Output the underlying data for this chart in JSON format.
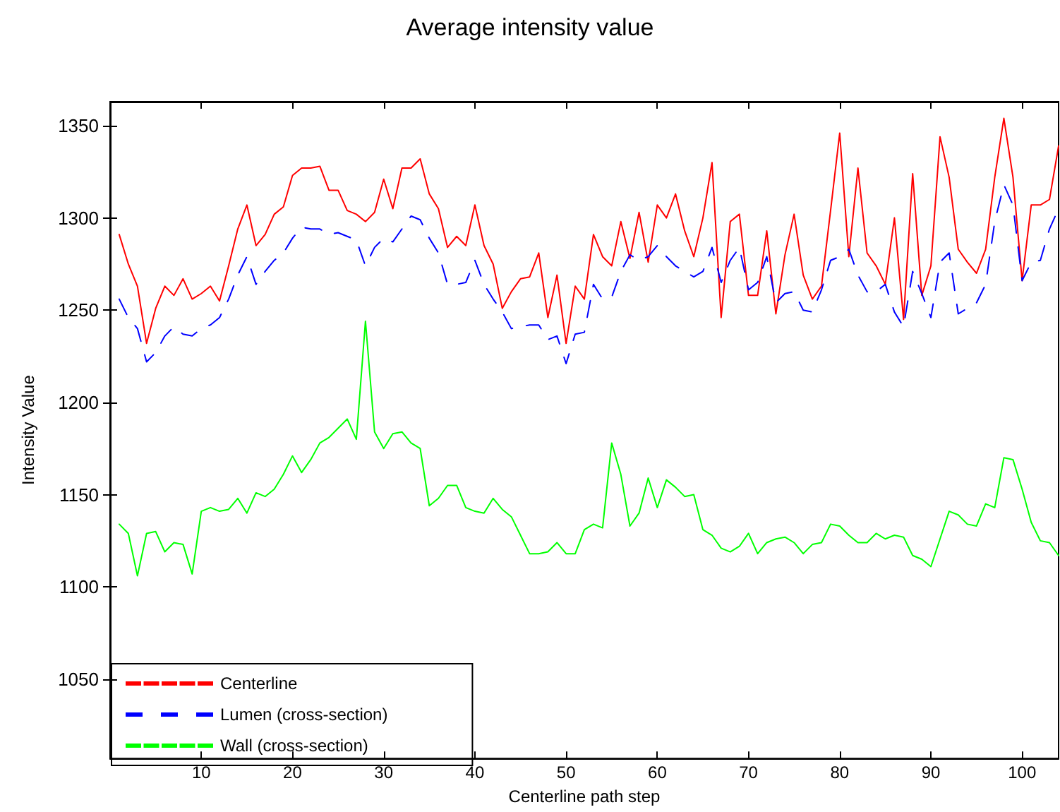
{
  "chart_data": {
    "type": "line",
    "title": "Average intensity value",
    "xlabel": "Centerline path step",
    "ylabel": "Intensity Value",
    "x": [
      1,
      2,
      3,
      4,
      5,
      6,
      7,
      8,
      9,
      10,
      11,
      12,
      13,
      14,
      15,
      16,
      17,
      18,
      19,
      20,
      21,
      22,
      23,
      24,
      25,
      26,
      27,
      28,
      29,
      30,
      31,
      32,
      33,
      34,
      35,
      36,
      37,
      38,
      39,
      40,
      41,
      42,
      43,
      44,
      45,
      46,
      47,
      48,
      49,
      50,
      51,
      52,
      53,
      54,
      55,
      56,
      57,
      58,
      59,
      60,
      61,
      62,
      63,
      64,
      65,
      66,
      67,
      68,
      69,
      70,
      71,
      72,
      73,
      74,
      75,
      76,
      77,
      78,
      79,
      80,
      81,
      82,
      83,
      84,
      85,
      86,
      87,
      88,
      89,
      90,
      91,
      92,
      93,
      94,
      95,
      96,
      97,
      98,
      99,
      100,
      101,
      102,
      103,
      104
    ],
    "series": [
      {
        "name": "Centerline",
        "color": "#ff0000",
        "line_style": "solid",
        "values": [
          1291,
          1275,
          1263,
          1232,
          1251,
          1263,
          1258,
          1267,
          1256,
          1259,
          1263,
          1255,
          1274,
          1294,
          1307,
          1285,
          1291,
          1302,
          1306,
          1323,
          1327,
          1327,
          1328,
          1315,
          1315,
          1304,
          1302,
          1298,
          1303,
          1321,
          1305,
          1327,
          1327,
          1332,
          1313,
          1305,
          1284,
          1290,
          1285,
          1307,
          1285,
          1275,
          1251,
          1260,
          1267,
          1268,
          1281,
          1246,
          1269,
          1232,
          1263,
          1256,
          1291,
          1279,
          1274,
          1298,
          1278,
          1303,
          1276,
          1307,
          1300,
          1313,
          1293,
          1279,
          1300,
          1330,
          1246,
          1298,
          1302,
          1258,
          1258,
          1293,
          1248,
          1280,
          1302,
          1269,
          1256,
          1263,
          1304,
          1346,
          1279,
          1327,
          1281,
          1274,
          1264,
          1300,
          1245,
          1324,
          1258,
          1274,
          1344,
          1322,
          1283,
          1276,
          1270,
          1283,
          1322,
          1354,
          1322,
          1266,
          1307,
          1307,
          1310,
          1339
        ]
      },
      {
        "name": "Lumen (cross-section)",
        "color": "#0000ff",
        "line_style": "dashed",
        "values": [
          1256,
          1246,
          1240,
          1222,
          1227,
          1236,
          1241,
          1237,
          1236,
          1240,
          1242,
          1246,
          1256,
          1269,
          1279,
          1264,
          1271,
          1277,
          1281,
          1289,
          1295,
          1294,
          1294,
          1291,
          1292,
          1290,
          1288,
          1274,
          1284,
          1289,
          1287,
          1294,
          1301,
          1299,
          1289,
          1281,
          1264,
          1264,
          1265,
          1277,
          1264,
          1256,
          1249,
          1240,
          1241,
          1242,
          1242,
          1234,
          1236,
          1221,
          1237,
          1238,
          1264,
          1256,
          1257,
          1271,
          1280,
          1277,
          1279,
          1285,
          1279,
          1274,
          1271,
          1268,
          1271,
          1284,
          1265,
          1277,
          1284,
          1261,
          1265,
          1279,
          1254,
          1259,
          1260,
          1250,
          1249,
          1261,
          1277,
          1279,
          1283,
          1269,
          1260,
          1260,
          1264,
          1249,
          1241,
          1271,
          1259,
          1246,
          1276,
          1281,
          1248,
          1251,
          1254,
          1264,
          1298,
          1318,
          1307,
          1266,
          1276,
          1277,
          1294,
          1305
        ]
      },
      {
        "name": "Wall (cross-section)",
        "color": "#00ff00",
        "line_style": "solid",
        "values": [
          1134,
          1129,
          1106,
          1129,
          1130,
          1119,
          1124,
          1123,
          1107,
          1141,
          1143,
          1141,
          1142,
          1148,
          1140,
          1151,
          1149,
          1153,
          1161,
          1171,
          1162,
          1169,
          1178,
          1181,
          1186,
          1191,
          1180,
          1244,
          1184,
          1175,
          1183,
          1184,
          1178,
          1175,
          1144,
          1148,
          1155,
          1155,
          1143,
          1141,
          1140,
          1148,
          1142,
          1138,
          1128,
          1118,
          1118,
          1119,
          1124,
          1118,
          1118,
          1131,
          1134,
          1132,
          1178,
          1161,
          1133,
          1140,
          1159,
          1143,
          1158,
          1154,
          1149,
          1150,
          1131,
          1128,
          1121,
          1119,
          1122,
          1129,
          1118,
          1124,
          1126,
          1127,
          1124,
          1118,
          1123,
          1124,
          1134,
          1133,
          1128,
          1124,
          1124,
          1129,
          1126,
          1128,
          1127,
          1117,
          1115,
          1111,
          1126,
          1141,
          1139,
          1134,
          1133,
          1145,
          1143,
          1170,
          1169,
          1153,
          1135,
          1125,
          1124,
          1117
        ]
      }
    ],
    "xlim": [
      0,
      104
    ],
    "xticks": [
      10,
      20,
      30,
      40,
      50,
      60,
      70,
      80,
      90,
      100
    ],
    "ylim": [
      1007,
      1363
    ],
    "yticks": [
      1050,
      1100,
      1150,
      1200,
      1250,
      1300,
      1350
    ],
    "grid": false,
    "legend": "bottom left"
  }
}
